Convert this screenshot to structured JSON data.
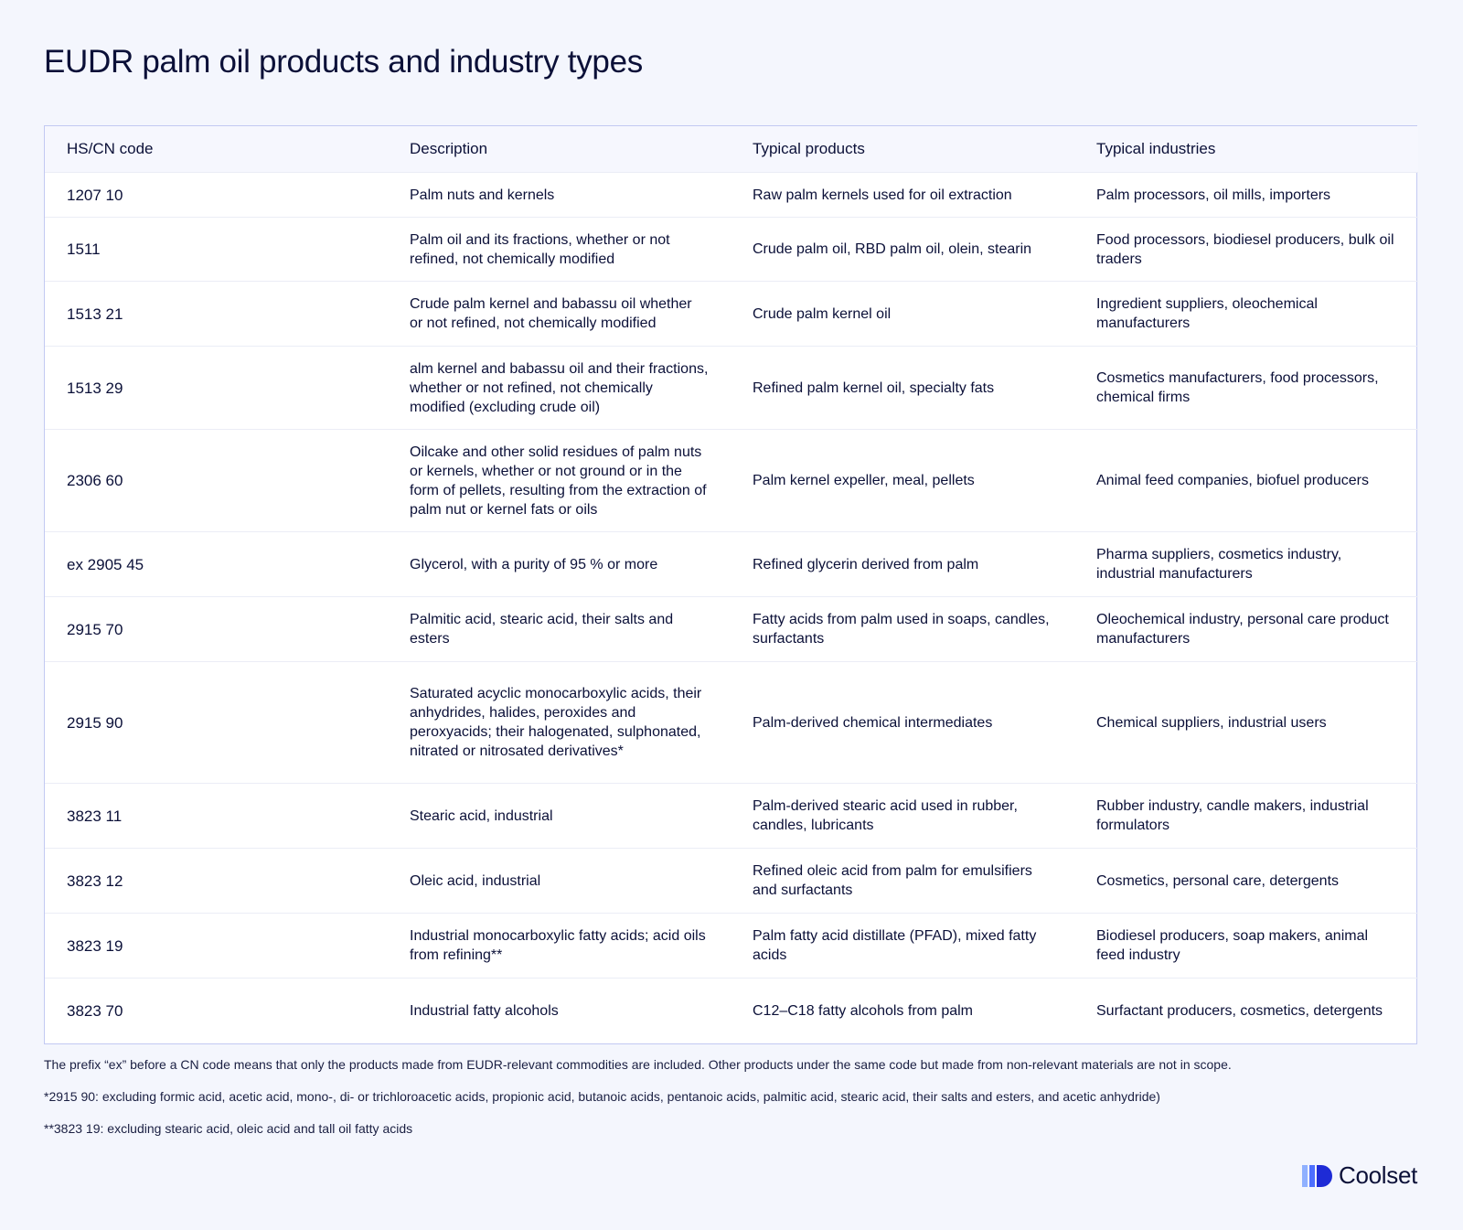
{
  "title": "EUDR palm oil products and industry types",
  "table": {
    "headers": [
      "HS/CN code",
      "Description",
      "Typical products",
      "Typical industries"
    ],
    "rows": [
      [
        "1207 10",
        "Palm nuts and kernels",
        "Raw palm kernels used for oil extraction",
        "Palm processors, oil mills, importers"
      ],
      [
        "1511",
        "Palm oil and its fractions, whether or not refined, not chemically modified",
        "Crude palm oil, RBD palm oil, olein, stearin",
        "Food processors, biodiesel producers, bulk oil traders"
      ],
      [
        "1513 21",
        "Crude palm kernel and babassu oil whether or not refined, not chemically modified",
        "Crude palm kernel oil",
        "Ingredient suppliers, oleochemical manufacturers"
      ],
      [
        "1513 29",
        "alm kernel and babassu oil and their fractions, whether or not refined, not chemically modified (excluding crude oil)",
        "Refined palm kernel oil, specialty fats",
        "Cosmetics manufacturers, food processors, chemical firms"
      ],
      [
        "2306 60",
        "Oilcake and other solid residues of palm nuts or kernels, whether or not ground or in the form of pellets, resulting from the extraction of palm nut or kernel fats or oils",
        "Palm kernel expeller, meal, pellets",
        "Animal feed companies, biofuel producers"
      ],
      [
        "ex 2905 45",
        "Glycerol, with a purity of 95 % or more",
        "Refined glycerin derived from palm",
        "Pharma suppliers, cosmetics industry, industrial manufacturers"
      ],
      [
        "2915 70",
        "Palmitic acid, stearic acid, their salts and esters",
        "Fatty acids from palm used in soaps, candles, surfactants",
        "Oleochemical industry, personal care product manufacturers"
      ],
      [
        "2915 90",
        "Saturated acyclic monocarboxylic acids, their anhydrides, halides, peroxides and peroxyacids; their halogenated, sulphonated, nitrated or nitrosated derivatives*",
        "Palm-derived chemical intermediates",
        "Chemical suppliers, industrial users"
      ],
      [
        "3823 11",
        "Stearic acid, industrial",
        "Palm-derived stearic acid used in rubber, candles, lubricants",
        "Rubber industry, candle makers, industrial formulators"
      ],
      [
        "3823 12",
        "Oleic acid, industrial",
        "Refined oleic acid from palm for emulsifiers and surfactants",
        "Cosmetics, personal care, detergents"
      ],
      [
        "3823 19",
        "Industrial monocarboxylic fatty acids; acid oils from refining**",
        "Palm fatty acid distillate (PFAD), mixed fatty acids",
        "Biodiesel producers, soap makers, animal feed industry"
      ],
      [
        "3823 70",
        "Industrial fatty alcohols",
        "C12–C18 fatty alcohols from palm",
        "Surfactant producers, cosmetics, detergents"
      ]
    ]
  },
  "notes": [
    "The prefix “ex” before a CN code means that only the products made from EUDR-relevant commodities are included. Other products under the same code but made from non-relevant materials are not in scope.",
    "*2915 90: excluding formic acid, acetic acid, mono-, di- or trichloroacetic acids, propionic acid, butanoic acids, pentanoic acids, palmitic acid, stearic acid, their salts and esters, and acetic anhydride)",
    "**3823 19: excluding stearic acid, oleic acid and tall oil fatty acids"
  ],
  "brand": {
    "name": "Coolset",
    "icon": "coolset-logo-icon",
    "colors": [
      "#8fb0ff",
      "#4d6fff",
      "#1e2bd6"
    ]
  }
}
